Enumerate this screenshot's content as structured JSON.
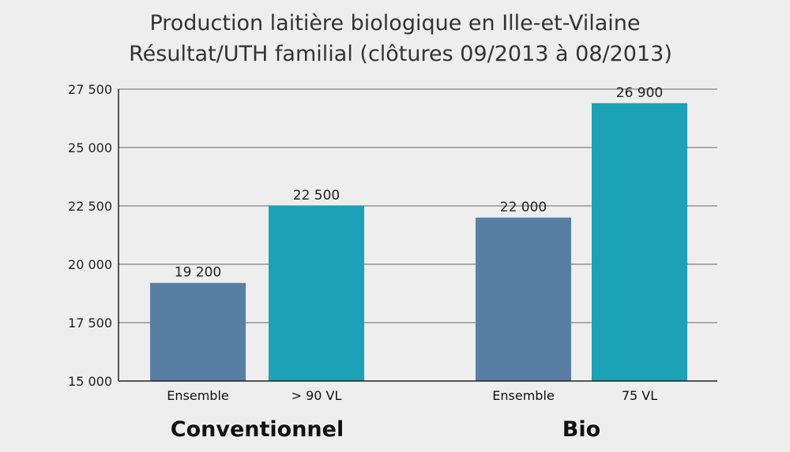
{
  "chart_data": {
    "type": "bar",
    "title": "Production laitière biologique en Ille-et-Vilaine",
    "subtitle": "Résultat/UTH familial (clôtures 09/2013 à 08/2013)",
    "xlabel": "",
    "ylabel": "",
    "ylim": [
      15000,
      27500
    ],
    "yticks": [
      15000,
      17500,
      20000,
      22500,
      25000,
      27500
    ],
    "ytick_labels": [
      "15 000",
      "17 500",
      "20 000",
      "22 500",
      "25 000",
      "27 500"
    ],
    "grid": true,
    "groups": [
      {
        "name": "Conventionnel",
        "bars": [
          {
            "category": "Ensemble",
            "value": 19200,
            "label": "19 200",
            "color": "#587fa3"
          },
          {
            "category": "> 90 VL",
            "value": 22500,
            "label": "22 500",
            "color": "#1ba2b6"
          }
        ]
      },
      {
        "name": "Bio",
        "bars": [
          {
            "category": "Ensemble",
            "value": 22000,
            "label": "22 000",
            "color": "#587fa3"
          },
          {
            "category": "75 VL",
            "value": 26900,
            "label": "26 900",
            "color": "#1ba2b6"
          }
        ]
      }
    ]
  },
  "colors": {
    "background": "#eeeeee",
    "grid": "#666666",
    "axis": "#222222"
  }
}
